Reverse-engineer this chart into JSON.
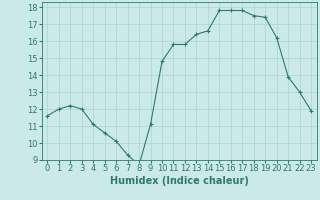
{
  "x": [
    0,
    1,
    2,
    3,
    4,
    5,
    6,
    7,
    8,
    9,
    10,
    11,
    12,
    13,
    14,
    15,
    16,
    17,
    18,
    19,
    20,
    21,
    22,
    23
  ],
  "y": [
    11.6,
    12.0,
    12.2,
    12.0,
    11.1,
    10.6,
    10.1,
    9.3,
    8.7,
    11.1,
    14.8,
    15.8,
    15.8,
    16.4,
    16.6,
    17.8,
    17.8,
    17.8,
    17.5,
    17.4,
    16.2,
    13.9,
    13.0,
    11.9
  ],
  "xlabel": "Humidex (Indice chaleur)",
  "xlim": [
    -0.5,
    23.5
  ],
  "ylim": [
    9,
    18.3
  ],
  "yticks": [
    9,
    10,
    11,
    12,
    13,
    14,
    15,
    16,
    17,
    18
  ],
  "xticks": [
    0,
    1,
    2,
    3,
    4,
    5,
    6,
    7,
    8,
    9,
    10,
    11,
    12,
    13,
    14,
    15,
    16,
    17,
    18,
    19,
    20,
    21,
    22,
    23
  ],
  "line_color": "#2d7a6e",
  "marker_color": "#2d7a6e",
  "bg_color": "#cce9ea",
  "grid_color": "#b0d8da",
  "tick_label_color": "#2d7a6e",
  "xlabel_color": "#2d7a6e",
  "xlabel_fontsize": 7.0,
  "tick_fontsize": 6.0
}
